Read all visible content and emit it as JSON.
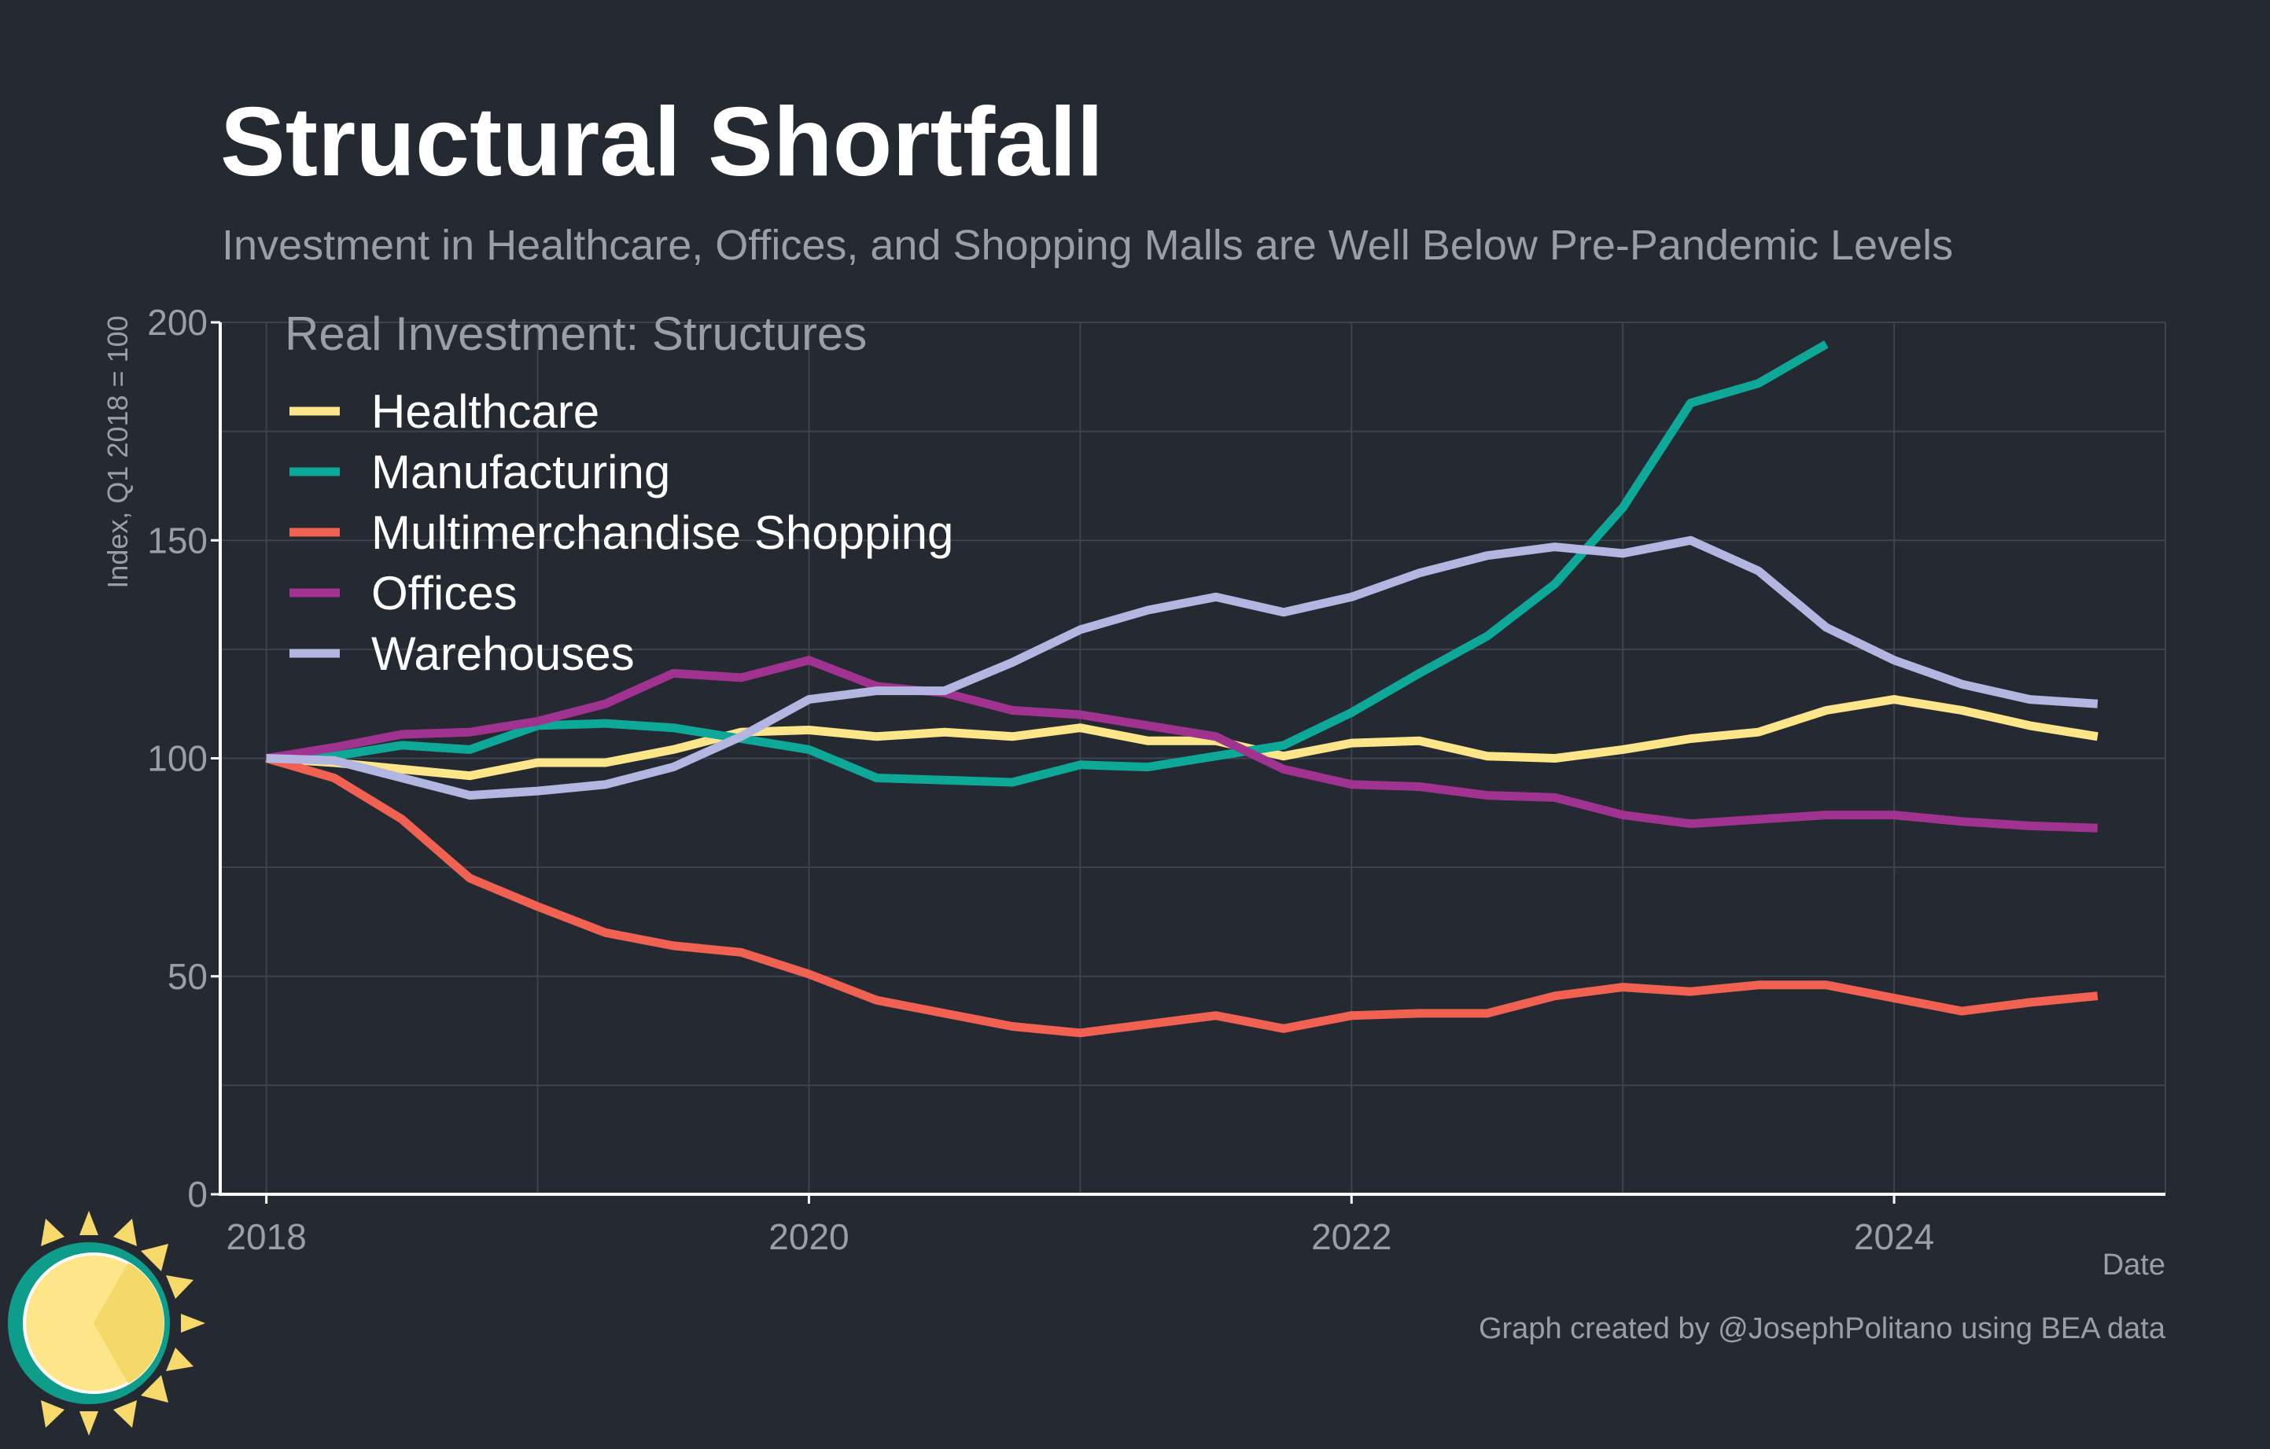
{
  "page": {
    "title": "Structural Shortfall",
    "subtitle": "Investment in Healthcare, Offices, and Shopping Malls are Well Below Pre-Pandemic Levels",
    "caption": "Graph created by @JosephPolitano using BEA data",
    "logo_icon": "sun-logo-icon"
  },
  "colors": {
    "background": "#252932",
    "grid": "#3e434d",
    "axis": "#ffffff",
    "muted_text": "#9a9ea6"
  },
  "chart_data": {
    "type": "line",
    "title": "Real Investment: Structures",
    "xlabel": "Date",
    "ylabel": "Index, Q1 2018 = 100",
    "ylim": [
      0,
      200
    ],
    "yticks": [
      0,
      50,
      100,
      150,
      200
    ],
    "xlim": [
      2017.83,
      2025.0
    ],
    "xticks": [
      2018,
      2020,
      2022,
      2024
    ],
    "grid": true,
    "legend_position": "top-left",
    "series": [
      {
        "name": "Healthcare",
        "color": "#fde68a",
        "x": [
          2018.0,
          2018.25,
          2018.5,
          2018.75,
          2019.0,
          2019.25,
          2019.5,
          2019.75,
          2020.0,
          2020.25,
          2020.5,
          2020.75,
          2021.0,
          2021.25,
          2021.5,
          2021.75,
          2022.0,
          2022.25,
          2022.5,
          2022.75,
          2023.0,
          2023.25,
          2023.5,
          2023.75,
          2024.0,
          2024.25,
          2024.5,
          2024.75
        ],
        "values": [
          100,
          99,
          97.5,
          96,
          99,
          99,
          102,
          106,
          106.5,
          105,
          106,
          105,
          107,
          104,
          104,
          100.5,
          103.5,
          104,
          100.5,
          100,
          102,
          104.5,
          106,
          111,
          113.5,
          111,
          107.5,
          105
        ]
      },
      {
        "name": "Manufacturing",
        "color": "#0ea899",
        "x": [
          2018.0,
          2018.25,
          2018.5,
          2018.75,
          2019.0,
          2019.25,
          2019.5,
          2019.75,
          2020.0,
          2020.25,
          2020.5,
          2020.75,
          2021.0,
          2021.25,
          2021.5,
          2021.75,
          2022.0,
          2022.25,
          2022.5,
          2022.75,
          2023.0,
          2023.25,
          2023.5,
          2023.75
        ],
        "values": [
          100,
          100.5,
          103,
          102,
          107.5,
          108,
          107,
          104.5,
          102,
          95.5,
          95,
          94.5,
          98.5,
          98,
          100.5,
          103,
          110.5,
          119.5,
          128,
          140,
          157.5,
          181.5,
          186,
          195
        ]
      },
      {
        "name": "Multimerchandise Shopping",
        "color": "#f06152",
        "x": [
          2018.0,
          2018.25,
          2018.5,
          2018.75,
          2019.0,
          2019.25,
          2019.5,
          2019.75,
          2020.0,
          2020.25,
          2020.5,
          2020.75,
          2021.0,
          2021.25,
          2021.5,
          2021.75,
          2022.0,
          2022.25,
          2022.5,
          2022.75,
          2023.0,
          2023.25,
          2023.5,
          2023.75,
          2024.0,
          2024.25,
          2024.5,
          2024.75
        ],
        "values": [
          100,
          95.5,
          86,
          72.5,
          66,
          60,
          57,
          55.5,
          50.5,
          44.5,
          41.5,
          38.5,
          37,
          39,
          41,
          38,
          41,
          41.5,
          41.5,
          45.5,
          47.5,
          46.5,
          48,
          48,
          45,
          42,
          44,
          45.5
        ]
      },
      {
        "name": "Offices",
        "color": "#a0338f",
        "x": [
          2018.0,
          2018.25,
          2018.5,
          2018.75,
          2019.0,
          2019.25,
          2019.5,
          2019.75,
          2020.0,
          2020.25,
          2020.5,
          2020.75,
          2021.0,
          2021.25,
          2021.5,
          2021.75,
          2022.0,
          2022.25,
          2022.5,
          2022.75,
          2023.0,
          2023.25,
          2023.5,
          2023.75,
          2024.0,
          2024.25,
          2024.5,
          2024.75
        ],
        "values": [
          100,
          102.5,
          105.5,
          106,
          108.5,
          112.5,
          119.5,
          118.5,
          122.5,
          116.5,
          115,
          111,
          110,
          107.5,
          105,
          97.5,
          94,
          93.5,
          91.5,
          91,
          87,
          85,
          86,
          87,
          87,
          85.5,
          84.5,
          84
        ]
      },
      {
        "name": "Warehouses",
        "color": "#b3b6e0",
        "x": [
          2018.0,
          2018.25,
          2018.5,
          2018.75,
          2019.0,
          2019.25,
          2019.5,
          2019.75,
          2020.0,
          2020.25,
          2020.5,
          2020.75,
          2021.0,
          2021.25,
          2021.5,
          2021.75,
          2022.0,
          2022.25,
          2022.5,
          2022.75,
          2023.0,
          2023.25,
          2023.5,
          2023.75,
          2024.0,
          2024.25,
          2024.5,
          2024.75
        ],
        "values": [
          100,
          99.5,
          95.5,
          91.5,
          92.5,
          94,
          98,
          105,
          113.5,
          115.5,
          115.5,
          122,
          129.5,
          134,
          137,
          133.5,
          137,
          142.5,
          146.5,
          148.5,
          147,
          150,
          143,
          130,
          122.5,
          117,
          113.5,
          112.5
        ]
      }
    ]
  }
}
